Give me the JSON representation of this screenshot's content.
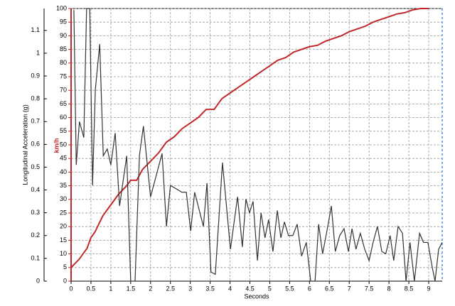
{
  "chart_data": {
    "type": "line",
    "ylabel": "Longitudinal Acceleration (g)",
    "y2label": "km/h",
    "xlabel": "Seconds",
    "xlim": [
      0,
      9.34
    ],
    "xticks": [
      0,
      0.5,
      1,
      1.5,
      2,
      2.5,
      3,
      3.5,
      4,
      4.5,
      5,
      5.5,
      6,
      6.5,
      7,
      7.5,
      8,
      8.5,
      9
    ],
    "ylim": [
      0,
      1.196
    ],
    "yticks": [
      0,
      0.1,
      0.2,
      0.3,
      0.4,
      0.5,
      0.6,
      0.7,
      0.8,
      0.9,
      1,
      1.1
    ],
    "y2lim": [
      0,
      100
    ],
    "y2ticks": [
      0,
      5,
      10,
      15,
      20,
      25,
      30,
      35,
      40,
      45,
      50,
      55,
      60,
      65,
      70,
      75,
      80,
      85,
      90,
      95,
      100
    ],
    "grid": true,
    "series": [
      {
        "color": "#c0282a",
        "axis": "y2",
        "x": [
          0,
          0.2,
          0.4,
          0.5,
          0.6,
          0.8,
          1.0,
          1.2,
          1.4,
          1.5,
          1.65,
          1.8,
          2.0,
          2.2,
          2.4,
          2.6,
          2.8,
          3.0,
          3.2,
          3.4,
          3.6,
          3.8,
          4.0,
          4.2,
          4.4,
          4.6,
          4.8,
          5.0,
          5.2,
          5.4,
          5.6,
          5.8,
          6.0,
          6.2,
          6.4,
          6.6,
          6.8,
          7.0,
          7.2,
          7.4,
          7.6,
          7.8,
          8.0,
          8.2,
          8.4,
          8.6,
          8.8,
          9.0
        ],
        "values": [
          5,
          8,
          12,
          16,
          18,
          24,
          28,
          32,
          35,
          37,
          37,
          41,
          44,
          47,
          51,
          53,
          56,
          58,
          60,
          63,
          63,
          67,
          69,
          71,
          73,
          75,
          77,
          79,
          81,
          82,
          84,
          85,
          86,
          86.5,
          88,
          89,
          90,
          91.5,
          92.5,
          93.5,
          95,
          96,
          97,
          98,
          98.5,
          99.5,
          100,
          100
        ]
      },
      {
        "color": "#333333",
        "x": [
          0.07,
          0.13,
          0.21,
          0.32,
          0.39,
          0.47,
          0.54,
          0.61,
          0.72,
          0.81,
          0.91,
          1.0,
          1.11,
          1.22,
          1.4,
          1.5,
          1.61,
          1.72,
          1.82,
          2.0,
          2.29,
          2.4,
          2.5,
          2.79,
          2.9,
          3.01,
          3.11,
          3.33,
          3.42,
          3.52,
          3.63,
          3.81,
          4.01,
          4.19,
          4.31,
          4.4,
          4.49,
          4.58,
          4.69,
          4.78,
          4.88,
          4.97,
          5.08,
          5.19,
          5.28,
          5.37,
          5.47,
          5.58,
          5.69,
          5.8,
          5.92,
          6.03,
          6.14,
          6.23,
          6.33,
          6.46,
          6.55,
          6.65,
          6.76,
          6.87,
          6.98,
          7.07,
          7.17,
          7.28,
          7.39,
          7.5,
          7.6,
          7.71,
          7.82,
          7.92,
          8.03,
          8.12,
          8.23,
          8.34,
          8.43,
          8.53,
          8.64,
          8.77,
          8.87,
          8.98,
          9.09,
          9.16,
          9.25,
          9.34
        ],
        "values": [
          1.19,
          0.51,
          0.7,
          0.63,
          1.196,
          1.196,
          0.42,
          0.84,
          1.04,
          0.55,
          0.58,
          0.51,
          0.65,
          0.33,
          0.55,
          0,
          0,
          0.55,
          0.68,
          0.37,
          0.56,
          0.24,
          0.42,
          0.39,
          0.39,
          0.22,
          0.39,
          0.24,
          0.43,
          0.04,
          0.03,
          0.52,
          0.14,
          0.37,
          0.15,
          0.36,
          0.3,
          0.35,
          0.09,
          0.3,
          0.19,
          0.27,
          0.13,
          0.31,
          0.19,
          0.26,
          0.2,
          0.2,
          0.25,
          0.11,
          0.17,
          0,
          0,
          0.25,
          0.12,
          0.24,
          0.33,
          0.13,
          0.2,
          0.23,
          0.13,
          0.23,
          0.14,
          0.21,
          0.14,
          0.09,
          0.17,
          0.24,
          0.13,
          0.12,
          0.2,
          0.09,
          0.24,
          0.21,
          0,
          0.17,
          0,
          0.21,
          0.17,
          0.17,
          0.06,
          0,
          0.14,
          0.17
        ]
      }
    ]
  }
}
